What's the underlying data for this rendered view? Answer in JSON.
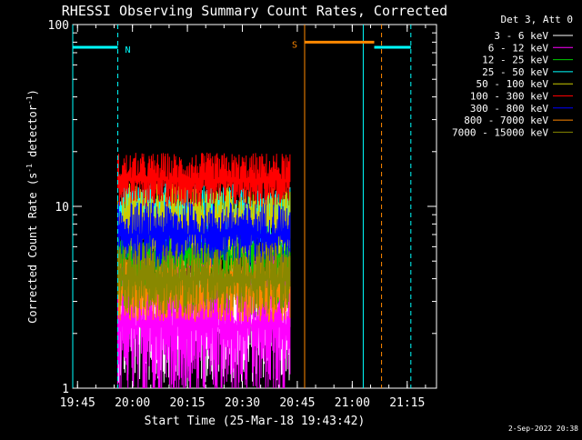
{
  "chart_data": {
    "type": "line",
    "title": "RHESSI Observing Summary Count Rates, Corrected",
    "xlabel": "Start Time (25-Mar-18 19:43:42)",
    "ylabel": "Corrected Count Rate (s⁻¹ detector⁻¹)",
    "ylabel_main": "Corrected Count Rate (s",
    "ylabel_sup1": "-1",
    "ylabel_mid": " detector",
    "ylabel_sup2": "-1",
    "ylabel_end": ")",
    "y_scale": "log",
    "ylim": [
      1,
      100
    ],
    "xlim": [
      "19:43:42",
      "21:23:00"
    ],
    "xlim_minutes": [
      0,
      99.3
    ],
    "x_ticks": [
      {
        "label": "19:45",
        "t": 1.3
      },
      {
        "label": "20:00",
        "t": 16.3
      },
      {
        "label": "20:15",
        "t": 31.3
      },
      {
        "label": "20:30",
        "t": 46.3
      },
      {
        "label": "20:45",
        "t": 61.3
      },
      {
        "label": "21:00",
        "t": 76.3
      },
      {
        "label": "21:15",
        "t": 91.3
      }
    ],
    "y_ticks": [
      {
        "label": "1",
        "v": 1
      },
      {
        "label": "10",
        "v": 10
      },
      {
        "label": "100",
        "v": 100
      }
    ],
    "grid": false,
    "legend_placement": "top-right, outside plot",
    "legend_header": "Det 3, Att 0",
    "timestamp": "2-Sep-2022 20:38",
    "data_window": {
      "start": "19:56:00",
      "end": "20:43:00"
    },
    "series": [
      {
        "name": "3 - 6 keV",
        "color": "#ffffff",
        "level": 2.4,
        "spread": 0.35
      },
      {
        "name": "6 - 12 keV",
        "color": "#ff00ff",
        "level": 2.2,
        "spread": 0.45
      },
      {
        "name": "12 - 25 keV",
        "color": "#00cc00",
        "level": 5.5,
        "spread": 0.3
      },
      {
        "name": "25 - 50 keV",
        "color": "#00ffff",
        "level": 9.0,
        "spread": 0.18
      },
      {
        "name": "50 - 100 keV",
        "color": "#cccc00",
        "level": 8.5,
        "spread": 0.2
      },
      {
        "name": "100 - 300 keV",
        "color": "#ff0000",
        "level": 14.0,
        "spread": 0.15
      },
      {
        "name": "300 - 800 keV",
        "color": "#0000ff",
        "level": 7.0,
        "spread": 0.18
      },
      {
        "name": "800 - 7000 keV",
        "color": "#ff8800",
        "level": 3.5,
        "spread": 0.18
      },
      {
        "name": "7000 - 15000 keV",
        "color": "#888800",
        "level": 4.0,
        "spread": 0.2
      }
    ],
    "annotations": [
      {
        "type": "segment",
        "label": "N",
        "color": "#00ffff",
        "t_start": 0,
        "t_end": 12.3,
        "value": 75
      },
      {
        "type": "segment",
        "label": "S",
        "color": "#ff8800",
        "t_start": 63.3,
        "t_end": 82.3,
        "value": 80
      },
      {
        "type": "segment",
        "label": "",
        "color": "#00ffff",
        "t_start": 82.3,
        "t_end": 92.3,
        "value": 75
      }
    ],
    "markers": [
      {
        "t": 0,
        "color": "#00ffff",
        "style": "solid"
      },
      {
        "t": 12.3,
        "color": "#00ffff",
        "style": "dashed"
      },
      {
        "t": 63.3,
        "color": "#ff8800",
        "style": "solid"
      },
      {
        "t": 79.3,
        "color": "#00ffff",
        "style": "solid"
      },
      {
        "t": 84.3,
        "color": "#ff8800",
        "style": "dashed"
      },
      {
        "t": 92.3,
        "color": "#00ffff",
        "style": "dashed"
      }
    ]
  }
}
